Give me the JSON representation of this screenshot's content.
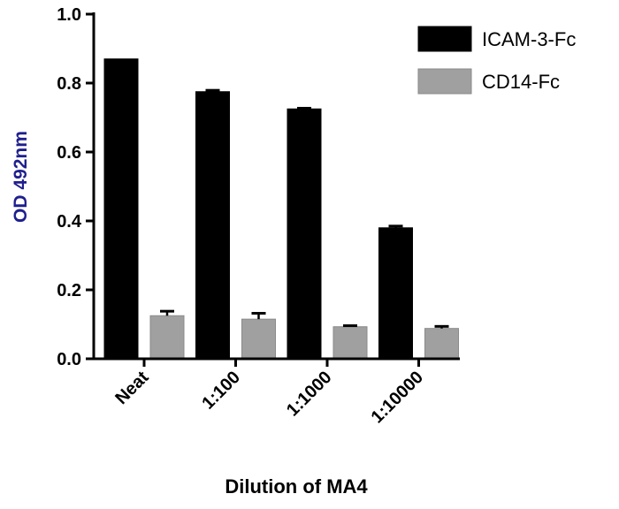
{
  "chart_data": {
    "type": "bar",
    "categories": [
      "Neat",
      "1:100",
      "1:1000",
      "1:10000"
    ],
    "series": [
      {
        "name": "ICAM-3-Fc",
        "color": "#000000",
        "values": [
          0.87,
          0.775,
          0.725,
          0.38
        ],
        "errors": [
          0.0,
          0.004,
          0.002,
          0.005
        ]
      },
      {
        "name": "CD14-Fc",
        "color": "#a0a0a0",
        "values": [
          0.125,
          0.115,
          0.093,
          0.088
        ],
        "errors": [
          0.013,
          0.017,
          0.003,
          0.006
        ]
      }
    ],
    "title": "",
    "xlabel": "Dilution of MA4",
    "ylabel": "OD 492nm",
    "ylabel_color": "#1f1f8f",
    "ylim": [
      0.0,
      1.0
    ],
    "yticks": [
      "0.0",
      "0.2",
      "0.4",
      "0.6",
      "0.8",
      "1.0"
    ],
    "legend_position": "top-right",
    "grid": false
  }
}
